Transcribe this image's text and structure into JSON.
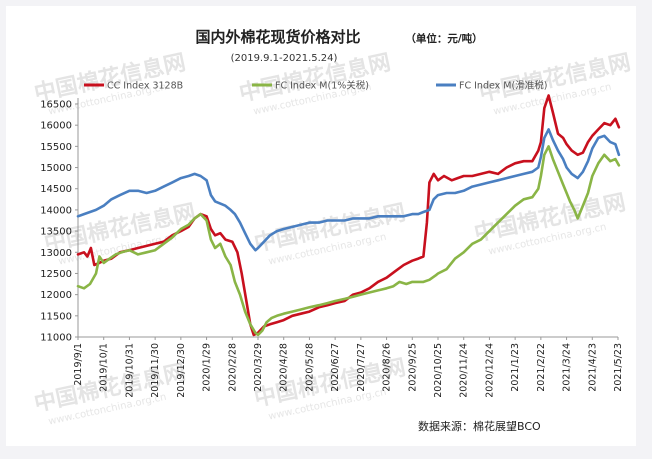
{
  "chart_data": {
    "type": "line",
    "title": "国内外棉花现货价格对比",
    "unit": "（单位：元/吨）",
    "subtitle": "(2019.9.1-2021.5.24)",
    "source": "数据来源：棉花展望BCO",
    "watermark": "中国棉花信息网",
    "watermark_url": "www.cottonchina.org.cn",
    "ylim": [
      11000,
      16500
    ],
    "yticks": [
      11000,
      11500,
      12000,
      12500,
      13000,
      13500,
      14000,
      14500,
      15000,
      15500,
      16000,
      16500
    ],
    "grid": false,
    "legend_position": "top",
    "x_ticks": [
      "2019/9/1",
      "2019/10/1",
      "2019/10/31",
      "2019/11/30",
      "2019/12/30",
      "2020/1/29",
      "2020/2/28",
      "2020/3/29",
      "2020/4/28",
      "2020/5/28",
      "2020/6/27",
      "2020/7/27",
      "2020/8/26",
      "2020/9/25",
      "2020/10/25",
      "2020/11/24",
      "2020/12/24",
      "2021/1/23",
      "2021/2/22",
      "2021/3/24",
      "2021/4/23",
      "2021/5/23"
    ],
    "series": [
      {
        "name": "CC Index 3128B",
        "color": "#c8101e",
        "style": "solid",
        "points": [
          [
            "2019/9/1",
            12950
          ],
          [
            "2019/9/8",
            13000
          ],
          [
            "2019/9/12",
            12900
          ],
          [
            "2019/9/16",
            13100
          ],
          [
            "2019/9/20",
            12700
          ],
          [
            "2019/9/26",
            12750
          ],
          [
            "2019/10/1",
            12800
          ],
          [
            "2019/10/10",
            12850
          ],
          [
            "2019/10/20",
            13000
          ],
          [
            "2019/10/31",
            13050
          ],
          [
            "2019/11/10",
            13100
          ],
          [
            "2019/11/20",
            13150
          ],
          [
            "2019/11/30",
            13200
          ],
          [
            "2019/12/10",
            13250
          ],
          [
            "2019/12/20",
            13400
          ],
          [
            "2019/12/30",
            13500
          ],
          [
            "2020/1/8",
            13600
          ],
          [
            "2020/1/15",
            13800
          ],
          [
            "2020/1/22",
            13900
          ],
          [
            "2020/1/29",
            13850
          ],
          [
            "2020/2/3",
            13550
          ],
          [
            "2020/2/8",
            13400
          ],
          [
            "2020/2/14",
            13450
          ],
          [
            "2020/2/20",
            13300
          ],
          [
            "2020/2/28",
            13250
          ],
          [
            "2020/3/5",
            13000
          ],
          [
            "2020/3/10",
            12500
          ],
          [
            "2020/3/15",
            11900
          ],
          [
            "2020/3/20",
            11300
          ],
          [
            "2020/3/24",
            11050
          ],
          [
            "2020/3/29",
            11100
          ],
          [
            "2020/4/5",
            11250
          ],
          [
            "2020/4/12",
            11300
          ],
          [
            "2020/4/20",
            11350
          ],
          [
            "2020/4/28",
            11400
          ],
          [
            "2020/5/8",
            11500
          ],
          [
            "2020/5/18",
            11550
          ],
          [
            "2020/5/28",
            11600
          ],
          [
            "2020/6/8",
            11700
          ],
          [
            "2020/6/18",
            11750
          ],
          [
            "2020/6/27",
            11800
          ],
          [
            "2020/7/8",
            11850
          ],
          [
            "2020/7/18",
            12000
          ],
          [
            "2020/7/27",
            12050
          ],
          [
            "2020/8/6",
            12150
          ],
          [
            "2020/8/16",
            12300
          ],
          [
            "2020/8/26",
            12400
          ],
          [
            "2020/9/5",
            12550
          ],
          [
            "2020/9/15",
            12700
          ],
          [
            "2020/9/25",
            12800
          ],
          [
            "2020/10/2",
            12850
          ],
          [
            "2020/10/8",
            12900
          ],
          [
            "2020/10/12",
            13700
          ],
          [
            "2020/10/15",
            14650
          ],
          [
            "2020/10/20",
            14850
          ],
          [
            "2020/10/25",
            14700
          ],
          [
            "2020/11/1",
            14800
          ],
          [
            "2020/11/10",
            14700
          ],
          [
            "2020/11/17",
            14750
          ],
          [
            "2020/11/24",
            14800
          ],
          [
            "2020/12/4",
            14800
          ],
          [
            "2020/12/14",
            14850
          ],
          [
            "2020/12/24",
            14900
          ],
          [
            "2021/1/3",
            14850
          ],
          [
            "2021/1/13",
            15000
          ],
          [
            "2021/1/23",
            15100
          ],
          [
            "2021/2/2",
            15150
          ],
          [
            "2021/2/12",
            15150
          ],
          [
            "2021/2/19",
            15400
          ],
          [
            "2021/2/22",
            15600
          ],
          [
            "2021/2/26",
            16400
          ],
          [
            "2021/3/3",
            16700
          ],
          [
            "2021/3/8",
            16300
          ],
          [
            "2021/3/14",
            15800
          ],
          [
            "2021/3/20",
            15700
          ],
          [
            "2021/3/24",
            15550
          ],
          [
            "2021/3/30",
            15400
          ],
          [
            "2021/4/6",
            15300
          ],
          [
            "2021/4/12",
            15350
          ],
          [
            "2021/4/18",
            15600
          ],
          [
            "2021/4/23",
            15750
          ],
          [
            "2021/4/30",
            15900
          ],
          [
            "2021/5/7",
            16050
          ],
          [
            "2021/5/14",
            16000
          ],
          [
            "2021/5/20",
            16150
          ],
          [
            "2021/5/24",
            15950
          ]
        ]
      },
      {
        "name": "FC Index M(1%关税)",
        "color": "#8ab546",
        "style": "solid",
        "points": [
          [
            "2019/9/1",
            12200
          ],
          [
            "2019/9/8",
            12150
          ],
          [
            "2019/9/15",
            12250
          ],
          [
            "2019/9/22",
            12500
          ],
          [
            "2019/9/26",
            12900
          ],
          [
            "2019/10/1",
            12750
          ],
          [
            "2019/10/8",
            12850
          ],
          [
            "2019/10/15",
            12950
          ],
          [
            "2019/10/22",
            13000
          ],
          [
            "2019/10/31",
            13050
          ],
          [
            "2019/11/10",
            12950
          ],
          [
            "2019/11/20",
            13000
          ],
          [
            "2019/11/30",
            13050
          ],
          [
            "2019/12/10",
            13200
          ],
          [
            "2019/12/20",
            13350
          ],
          [
            "2019/12/30",
            13550
          ],
          [
            "2020/1/8",
            13650
          ],
          [
            "2020/1/15",
            13800
          ],
          [
            "2020/1/22",
            13900
          ],
          [
            "2020/1/29",
            13750
          ],
          [
            "2020/2/3",
            13300
          ],
          [
            "2020/2/8",
            13100
          ],
          [
            "2020/2/14",
            13200
          ],
          [
            "2020/2/20",
            12900
          ],
          [
            "2020/2/26",
            12700
          ],
          [
            "2020/3/2",
            12300
          ],
          [
            "2020/3/8",
            12000
          ],
          [
            "2020/3/14",
            11600
          ],
          [
            "2020/3/20",
            11300
          ],
          [
            "2020/3/26",
            11100
          ],
          [
            "2020/3/29",
            11050
          ],
          [
            "2020/4/3",
            11150
          ],
          [
            "2020/4/8",
            11350
          ],
          [
            "2020/4/14",
            11450
          ],
          [
            "2020/4/20",
            11500
          ],
          [
            "2020/4/28",
            11550
          ],
          [
            "2020/5/8",
            11600
          ],
          [
            "2020/5/18",
            11650
          ],
          [
            "2020/5/28",
            11700
          ],
          [
            "2020/6/8",
            11750
          ],
          [
            "2020/6/18",
            11800
          ],
          [
            "2020/6/27",
            11850
          ],
          [
            "2020/7/8",
            11900
          ],
          [
            "2020/7/18",
            11950
          ],
          [
            "2020/7/27",
            12000
          ],
          [
            "2020/8/6",
            12050
          ],
          [
            "2020/8/16",
            12100
          ],
          [
            "2020/8/26",
            12150
          ],
          [
            "2020/9/3",
            12200
          ],
          [
            "2020/9/10",
            12300
          ],
          [
            "2020/9/18",
            12250
          ],
          [
            "2020/9/25",
            12300
          ],
          [
            "2020/10/2",
            12300
          ],
          [
            "2020/10/8",
            12300
          ],
          [
            "2020/10/15",
            12350
          ],
          [
            "2020/10/22",
            12450
          ],
          [
            "2020/10/25",
            12500
          ],
          [
            "2020/11/4",
            12600
          ],
          [
            "2020/11/14",
            12850
          ],
          [
            "2020/11/24",
            13000
          ],
          [
            "2020/12/4",
            13200
          ],
          [
            "2020/12/14",
            13300
          ],
          [
            "2020/12/24",
            13500
          ],
          [
            "2021/1/3",
            13700
          ],
          [
            "2021/1/13",
            13900
          ],
          [
            "2021/1/23",
            14100
          ],
          [
            "2021/2/2",
            14250
          ],
          [
            "2021/2/12",
            14300
          ],
          [
            "2021/2/19",
            14500
          ],
          [
            "2021/2/22",
            14800
          ],
          [
            "2021/2/26",
            15300
          ],
          [
            "2021/3/3",
            15500
          ],
          [
            "2021/3/8",
            15200
          ],
          [
            "2021/3/14",
            14900
          ],
          [
            "2021/3/20",
            14600
          ],
          [
            "2021/3/24",
            14400
          ],
          [
            "2021/3/28",
            14200
          ],
          [
            "2021/4/2",
            14000
          ],
          [
            "2021/4/6",
            13800
          ],
          [
            "2021/4/12",
            14100
          ],
          [
            "2021/4/18",
            14400
          ],
          [
            "2021/4/23",
            14800
          ],
          [
            "2021/4/30",
            15100
          ],
          [
            "2021/5/7",
            15300
          ],
          [
            "2021/5/14",
            15150
          ],
          [
            "2021/5/20",
            15200
          ],
          [
            "2021/5/24",
            15050
          ]
        ]
      },
      {
        "name": "FC Index M(滑准税)",
        "color": "#4a7fc1",
        "style": "solid",
        "points": [
          [
            "2019/9/1",
            13850
          ],
          [
            "2019/9/8",
            13900
          ],
          [
            "2019/9/15",
            13950
          ],
          [
            "2019/9/22",
            14000
          ],
          [
            "2019/10/1",
            14100
          ],
          [
            "2019/10/10",
            14250
          ],
          [
            "2019/10/20",
            14350
          ],
          [
            "2019/10/31",
            14450
          ],
          [
            "2019/11/10",
            14450
          ],
          [
            "2019/11/20",
            14400
          ],
          [
            "2019/11/30",
            14450
          ],
          [
            "2019/12/10",
            14550
          ],
          [
            "2019/12/20",
            14650
          ],
          [
            "2019/12/30",
            14750
          ],
          [
            "2020/1/8",
            14800
          ],
          [
            "2020/1/15",
            14850
          ],
          [
            "2020/1/22",
            14800
          ],
          [
            "2020/1/29",
            14700
          ],
          [
            "2020/2/3",
            14350
          ],
          [
            "2020/2/8",
            14200
          ],
          [
            "2020/2/14",
            14150
          ],
          [
            "2020/2/20",
            14100
          ],
          [
            "2020/2/26",
            14000
          ],
          [
            "2020/3/2",
            13900
          ],
          [
            "2020/3/8",
            13700
          ],
          [
            "2020/3/14",
            13450
          ],
          [
            "2020/3/20",
            13200
          ],
          [
            "2020/3/26",
            13050
          ],
          [
            "2020/3/29",
            13100
          ],
          [
            "2020/4/5",
            13250
          ],
          [
            "2020/4/12",
            13400
          ],
          [
            "2020/4/20",
            13500
          ],
          [
            "2020/4/28",
            13550
          ],
          [
            "2020/5/8",
            13600
          ],
          [
            "2020/5/18",
            13650
          ],
          [
            "2020/5/28",
            13700
          ],
          [
            "2020/6/8",
            13700
          ],
          [
            "2020/6/18",
            13750
          ],
          [
            "2020/6/27",
            13750
          ],
          [
            "2020/7/8",
            13750
          ],
          [
            "2020/7/18",
            13800
          ],
          [
            "2020/7/27",
            13800
          ],
          [
            "2020/8/6",
            13800
          ],
          [
            "2020/8/16",
            13850
          ],
          [
            "2020/8/26",
            13850
          ],
          [
            "2020/9/5",
            13850
          ],
          [
            "2020/9/15",
            13850
          ],
          [
            "2020/9/25",
            13900
          ],
          [
            "2020/10/2",
            13900
          ],
          [
            "2020/10/8",
            13950
          ],
          [
            "2020/10/15",
            14000
          ],
          [
            "2020/10/20",
            14250
          ],
          [
            "2020/10/25",
            14350
          ],
          [
            "2020/11/4",
            14400
          ],
          [
            "2020/11/14",
            14400
          ],
          [
            "2020/11/24",
            14450
          ],
          [
            "2020/12/4",
            14550
          ],
          [
            "2020/12/14",
            14600
          ],
          [
            "2020/12/24",
            14650
          ],
          [
            "2021/1/3",
            14700
          ],
          [
            "2021/1/13",
            14750
          ],
          [
            "2021/1/23",
            14800
          ],
          [
            "2021/2/2",
            14850
          ],
          [
            "2021/2/12",
            14900
          ],
          [
            "2021/2/19",
            15000
          ],
          [
            "2021/2/22",
            15250
          ],
          [
            "2021/2/26",
            15700
          ],
          [
            "2021/3/3",
            15900
          ],
          [
            "2021/3/8",
            15650
          ],
          [
            "2021/3/14",
            15400
          ],
          [
            "2021/3/20",
            15200
          ],
          [
            "2021/3/24",
            15000
          ],
          [
            "2021/3/30",
            14850
          ],
          [
            "2021/4/6",
            14750
          ],
          [
            "2021/4/12",
            14900
          ],
          [
            "2021/4/18",
            15150
          ],
          [
            "2021/4/23",
            15450
          ],
          [
            "2021/4/30",
            15700
          ],
          [
            "2021/5/7",
            15750
          ],
          [
            "2021/5/14",
            15600
          ],
          [
            "2021/5/20",
            15550
          ],
          [
            "2021/5/24",
            15300
          ]
        ]
      }
    ]
  }
}
